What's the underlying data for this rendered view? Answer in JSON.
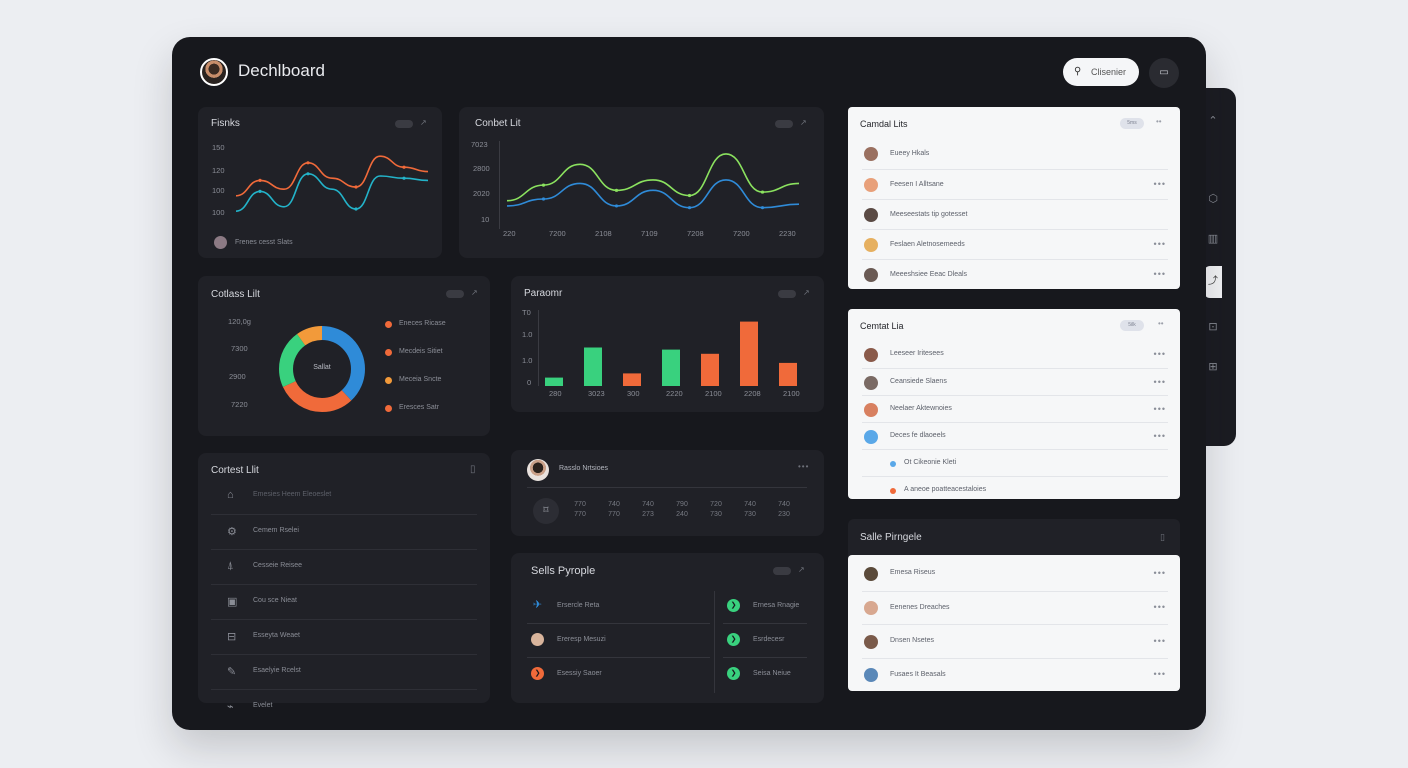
{
  "header": {
    "title": "Dechlboard",
    "search_label": "Clisenier"
  },
  "colors": {
    "orange": "#f06a3a",
    "blue": "#2f8bd8",
    "teal": "#23b3c9",
    "green": "#39d17e",
    "lime": "#8be25f",
    "frame": "#17181d",
    "card": "#202127"
  },
  "cards": {
    "trends": {
      "title": "Fisnks",
      "footer": "Frenes cesst Slats",
      "chart_data": {
        "type": "line",
        "yticks": [
          "150",
          "120",
          "100",
          "100"
        ],
        "series": [
          {
            "values": [
              32,
              46,
              38,
              62,
              48,
              40,
              68,
              58,
              54
            ]
          },
          {
            "values": [
              18,
              36,
              22,
              52,
              38,
              20,
              50,
              48,
              46
            ]
          }
        ]
      }
    },
    "contact_top": {
      "title": "Conbet Lit",
      "chart_data": {
        "type": "line",
        "yticks": [
          "7023",
          "2800",
          "2020",
          "10"
        ],
        "xticks": [
          "220",
          "7200",
          "2108",
          "7109",
          "7208",
          "7200",
          "2230"
        ],
        "series": [
          {
            "values": [
              28,
              46,
              70,
              40,
              52,
              34,
              82,
              38,
              48
            ]
          },
          {
            "values": [
              22,
              30,
              48,
              22,
              40,
              20,
              52,
              20,
              24
            ]
          }
        ]
      }
    },
    "donut": {
      "title": "Cotlass Lilt",
      "center": "Sallat",
      "yticks": [
        "120,0g",
        "7300",
        "2900",
        "7220"
      ],
      "legend": [
        "Eneces Ricase",
        "Mecdeis Sitiet",
        "Meceia Sncte",
        "Eresces Satr"
      ],
      "chart_data": {
        "type": "pie",
        "slices": [
          {
            "value": 38,
            "color": "#2f8bd8"
          },
          {
            "value": 30,
            "color": "#f06a3a"
          },
          {
            "value": 22,
            "color": "#39d17e"
          },
          {
            "value": 10,
            "color": "#f29a3a"
          }
        ]
      }
    },
    "bars": {
      "title": "Paraomr",
      "yticks": [
        "T0",
        "1.0",
        "1.0",
        "0"
      ],
      "chart_data": {
        "type": "bar",
        "categories": [
          "280",
          "3023",
          "300",
          "2220",
          "2100",
          "2208",
          "2100"
        ],
        "values": [
          12,
          55,
          18,
          52,
          46,
          92,
          33
        ],
        "colors": [
          "#39d17e",
          "#39d17e",
          "#f06a3a",
          "#39d17e",
          "#f06a3a",
          "#f06a3a",
          "#f06a3a"
        ]
      }
    },
    "contest_list": {
      "title": "Cortest Llit",
      "items": [
        {
          "icon": "cap-icon",
          "glyph": "⌂",
          "label": "Emesies Heem Eleoeslet"
        },
        {
          "icon": "gear-icon",
          "glyph": "⚙",
          "label": "Cemem Rselei"
        },
        {
          "icon": "flask-icon",
          "glyph": "⍋",
          "label": "Cesseie Reisee"
        },
        {
          "icon": "bag-icon",
          "glyph": "▣",
          "label": "Cou sce Nieat"
        },
        {
          "icon": "briefcase-icon",
          "glyph": "⊟",
          "label": "Esseyta Weaet"
        },
        {
          "icon": "pen-icon",
          "glyph": "✎",
          "label": "Esaelyie Rcelst"
        },
        {
          "icon": "tag-icon",
          "glyph": "⌁",
          "label": "Evelet"
        }
      ]
    },
    "profile_stats": {
      "name": "Rasslo Nrtsioes",
      "columns": [
        [
          "770",
          "770"
        ],
        [
          "740",
          "770"
        ],
        [
          "740",
          "273"
        ],
        [
          "790",
          "240"
        ],
        [
          "720",
          "730"
        ],
        [
          "740",
          "730"
        ],
        [
          "740",
          "230"
        ]
      ]
    },
    "sales_people_dark": {
      "title": "Sells Pyrople",
      "left": [
        {
          "label": "Ersercle Reta",
          "color": "#2f8bd8",
          "glyph": "✈"
        },
        {
          "label": "Ereresp Mesuzi",
          "color": "#d8b49c",
          "glyph": ""
        },
        {
          "label": "Esessiy Saoer",
          "color": "#f06a3a",
          "glyph": "❯"
        }
      ],
      "right": [
        {
          "label": "Ernesa Rnagie",
          "color": "#39d17e",
          "glyph": "❯"
        },
        {
          "label": "Esrdecesr",
          "color": "#39d17e",
          "glyph": "❯"
        },
        {
          "label": "Seisa Neiue",
          "color": "#39d17e",
          "glyph": "❯"
        }
      ]
    },
    "contact_light_1": {
      "title": "Camdal Lits",
      "pill": "5ms",
      "rows": [
        {
          "label": "Eueey Hkals",
          "color": "#9a7060",
          "dots": ""
        },
        {
          "label": "Feesen I Alltsane",
          "color": "#e8a07a",
          "dots": "•••"
        },
        {
          "label": "Meeseestats tip gotesset",
          "color": "#5a4a44",
          "dots": ""
        },
        {
          "label": "Feslaen Aletnosemeeds",
          "color": "#e6b060",
          "dots": "•••"
        },
        {
          "label": "Meeeshsiee Eeac Dleals",
          "color": "#6a5a54",
          "dots": "•••"
        }
      ]
    },
    "contact_light_2": {
      "title": "Cemtat Lia",
      "pill": "5ilk",
      "rows": [
        {
          "label": "Leeseer Iritesees",
          "color": "#8a5a4a",
          "dots": "•••"
        },
        {
          "label": "Ceansiede Slaens",
          "color": "#7a6a64",
          "dots": "•••"
        },
        {
          "label": "Neelaer Aktewnoies",
          "color": "#d88060",
          "dots": "•••"
        },
        {
          "label": "Deces fe dlaoeels",
          "color": "#5aa8e8",
          "dots": "•••"
        },
        {
          "label": "Ot Cikeonie Kleti",
          "color": "#5aa8e8",
          "dots": ""
        },
        {
          "label": "A aneoe poatteacestaloies",
          "color": "#f06a3a",
          "dots": ""
        }
      ]
    },
    "sales_people_light": {
      "title": "Salle Pirngele",
      "rows": [
        {
          "label": "Emesa Riseus",
          "color": "#5a4a3a",
          "dots": "•••"
        },
        {
          "label": "Eenenes Dreaches",
          "color": "#d8a890",
          "dots": "•••"
        },
        {
          "label": "Dnsen Nsetes",
          "color": "#7a5a4a",
          "dots": "•••"
        },
        {
          "label": "Fusaes It Beasals",
          "color": "#5a88b8",
          "dots": "•••"
        }
      ]
    }
  }
}
